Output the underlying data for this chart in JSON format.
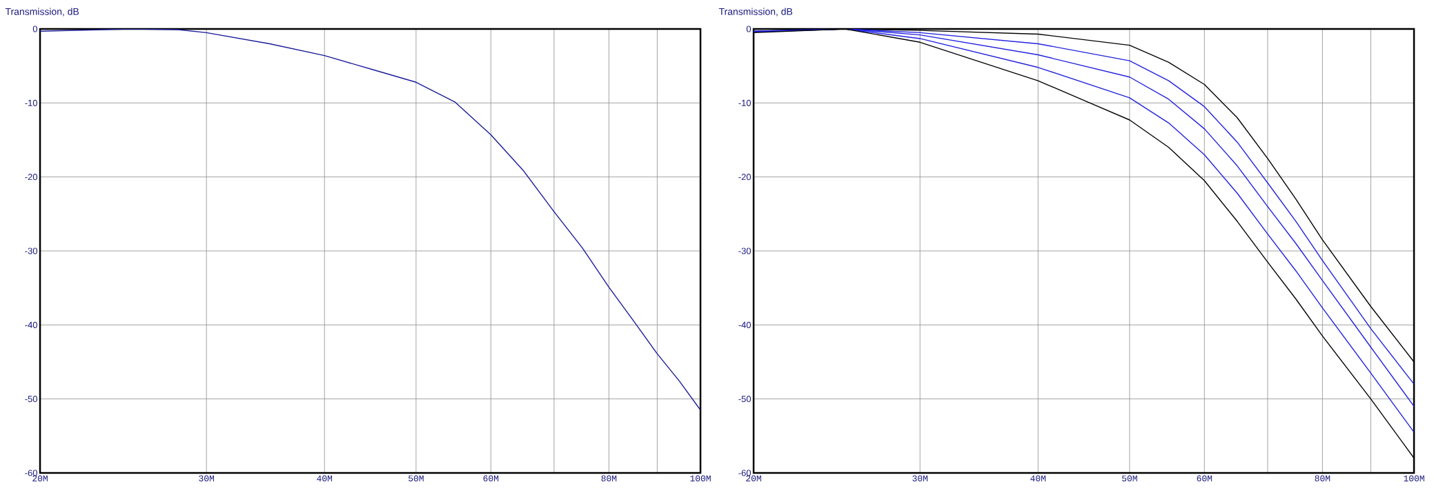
{
  "chart_data": [
    {
      "type": "line",
      "ylabel": "Transmission, dB",
      "xlim": [
        20,
        100
      ],
      "ylim": [
        -60,
        0
      ],
      "log": "x",
      "grid": true,
      "marker": "none",
      "line_style": "solid",
      "xticks": [
        {
          "value": 20,
          "label": "20M"
        },
        {
          "value": 30,
          "label": "30M"
        },
        {
          "value": 40,
          "label": "40M"
        },
        {
          "value": 50,
          "label": "50M"
        },
        {
          "value": 60,
          "label": "60M"
        },
        {
          "value": 70,
          "label": null
        },
        {
          "value": 80,
          "label": "80M"
        },
        {
          "value": 90,
          "label": null
        },
        {
          "value": 100,
          "label": "100M"
        }
      ],
      "yticks": [
        0,
        -10,
        -20,
        -30,
        -40,
        -50,
        -60
      ],
      "series": [
        {
          "color": "#1a1a9a",
          "x": [
            20,
            25,
            28,
            30,
            35,
            40,
            45,
            50,
            55,
            60,
            65,
            70,
            75,
            80,
            85,
            90,
            95,
            100
          ],
          "values": [
            -0.3,
            0,
            -0.1,
            -0.5,
            -2.0,
            -3.6,
            -5.5,
            -7.2,
            -9.9,
            -14.3,
            -19.2,
            -24.7,
            -29.6,
            -34.9,
            -39.5,
            -43.9,
            -47.6,
            -51.5
          ]
        }
      ]
    },
    {
      "type": "line",
      "ylabel": "Transmission, dB",
      "xlim": [
        20,
        100
      ],
      "ylim": [
        -60,
        0
      ],
      "log": "x",
      "grid": true,
      "marker": "none",
      "line_style": "solid",
      "xticks": [
        {
          "value": 20,
          "label": "20M"
        },
        {
          "value": 30,
          "label": "30M"
        },
        {
          "value": 40,
          "label": "40M"
        },
        {
          "value": 50,
          "label": "50M"
        },
        {
          "value": 60,
          "label": "60M"
        },
        {
          "value": 70,
          "label": null
        },
        {
          "value": 80,
          "label": "80M"
        },
        {
          "value": 90,
          "label": null
        },
        {
          "value": 100,
          "label": "100M"
        }
      ],
      "yticks": [
        0,
        -10,
        -20,
        -30,
        -40,
        -50,
        -60
      ],
      "series": [
        {
          "color": "#000000",
          "x": [
            20,
            25,
            30,
            40,
            50,
            55,
            60,
            65,
            70,
            75,
            80,
            90,
            100
          ],
          "values": [
            -0.3,
            0,
            -0.2,
            -0.7,
            -2.2,
            -4.5,
            -7.5,
            -12,
            -17.5,
            -23,
            -28.5,
            -37.5,
            -45
          ]
        },
        {
          "color": "#2020e0",
          "x": [
            20,
            25,
            30,
            40,
            50,
            55,
            60,
            65,
            70,
            75,
            80,
            90,
            100
          ],
          "values": [
            -0.3,
            0,
            -0.5,
            -2.0,
            -4.3,
            -7.0,
            -10.5,
            -15.3,
            -20.8,
            -26,
            -31.3,
            -40.5,
            -48
          ]
        },
        {
          "color": "#2020e0",
          "x": [
            20,
            25,
            30,
            40,
            50,
            55,
            60,
            65,
            70,
            75,
            80,
            90,
            100
          ],
          "values": [
            -0.4,
            0,
            -0.8,
            -3.5,
            -6.5,
            -9.5,
            -13.5,
            -18.5,
            -24,
            -29,
            -34,
            -43,
            -51
          ]
        },
        {
          "color": "#2020e0",
          "x": [
            20,
            25,
            30,
            40,
            50,
            55,
            60,
            65,
            70,
            75,
            80,
            90,
            100
          ],
          "values": [
            -0.4,
            0,
            -1.3,
            -5.2,
            -9.3,
            -12.7,
            -17,
            -22.2,
            -27.7,
            -32.7,
            -37.7,
            -46.5,
            -54.5
          ]
        },
        {
          "color": "#000000",
          "x": [
            20,
            25,
            30,
            40,
            45,
            50,
            55,
            60,
            65,
            70,
            75,
            80,
            90,
            100
          ],
          "values": [
            -0.5,
            0,
            -1.8,
            -7,
            -9.8,
            -12.3,
            -16,
            -20.5,
            -26,
            -31.5,
            -36.5,
            -41.5,
            -50,
            -58
          ]
        }
      ]
    }
  ]
}
